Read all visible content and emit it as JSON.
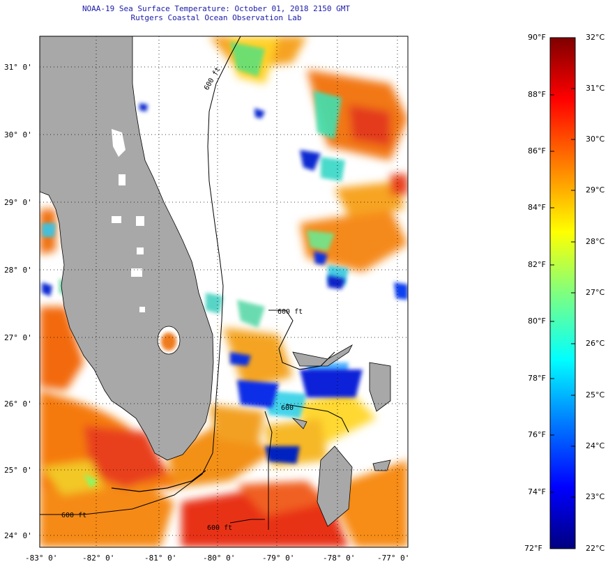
{
  "title": {
    "line1": "NOAA-19 Sea Surface Temperature:  October 01, 2018 2150 GMT",
    "line2": "Rutgers Coastal Ocean Observation Lab"
  },
  "map": {
    "lat_labels": [
      "31° 0'",
      "30° 0'",
      "29° 0'",
      "28° 0'",
      "27° 0'",
      "26° 0'",
      "25° 0'",
      "24° 0'"
    ],
    "lon_labels": [
      "-83° 0'",
      "-82° 0'",
      "-81° 0'",
      "-80° 0'",
      "-79° 0'",
      "-78° 0'",
      "-77° 0'"
    ],
    "contour_labels": [
      "600 ft",
      "600 ft",
      "600",
      "600 ft",
      "600 ft"
    ],
    "colors": {
      "land": "#a8a8a8",
      "cloud": "#ffffff",
      "frame": "#000000"
    }
  },
  "colorbar": {
    "fahrenheit": [
      "90°F",
      "88°F",
      "86°F",
      "84°F",
      "82°F",
      "80°F",
      "78°F",
      "76°F",
      "74°F",
      "72°F"
    ],
    "celsius": [
      "32°C",
      "31°C",
      "30°C",
      "29°C",
      "28°C",
      "27°C",
      "26°C",
      "25°C",
      "24°C",
      "23°C",
      "22°C"
    ],
    "gradient": [
      "#00007f",
      "#0000ff",
      "#007fff",
      "#00ffff",
      "#7fff7f",
      "#ffff00",
      "#ff7f00",
      "#ff0000",
      "#7f0000"
    ]
  }
}
